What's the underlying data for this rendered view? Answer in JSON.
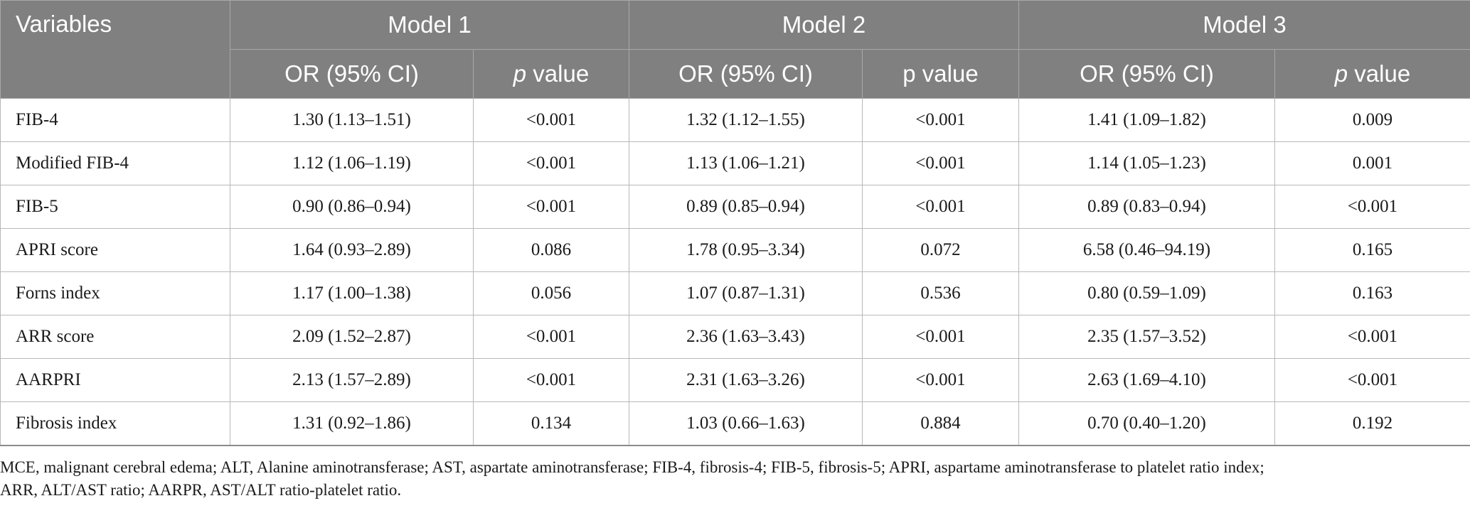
{
  "table": {
    "header": {
      "variables": "Variables",
      "models": [
        "Model 1",
        "Model 2",
        "Model 3"
      ],
      "or_label": "OR (95% CI)",
      "p_letter": "p",
      "p_rest": " value",
      "p_plain": "p value"
    },
    "rows": [
      {
        "variable": "FIB-4",
        "or1": "1.30 (1.13–1.51)",
        "p1": "<0.001",
        "or2": "1.32 (1.12–1.55)",
        "p2": "<0.001",
        "or3": "1.41 (1.09–1.82)",
        "p3": "0.009"
      },
      {
        "variable": "Modified FIB-4",
        "or1": "1.12 (1.06–1.19)",
        "p1": "<0.001",
        "or2": "1.13 (1.06–1.21)",
        "p2": "<0.001",
        "or3": "1.14 (1.05–1.23)",
        "p3": "0.001"
      },
      {
        "variable": "FIB-5",
        "or1": "0.90 (0.86–0.94)",
        "p1": "<0.001",
        "or2": "0.89 (0.85–0.94)",
        "p2": "<0.001",
        "or3": "0.89 (0.83–0.94)",
        "p3": "<0.001"
      },
      {
        "variable": "APRI score",
        "or1": "1.64 (0.93–2.89)",
        "p1": "0.086",
        "or2": "1.78 (0.95–3.34)",
        "p2": "0.072",
        "or3": "6.58 (0.46–94.19)",
        "p3": "0.165"
      },
      {
        "variable": "Forns index",
        "or1": "1.17 (1.00–1.38)",
        "p1": "0.056",
        "or2": "1.07 (0.87–1.31)",
        "p2": "0.536",
        "or3": "0.80 (0.59–1.09)",
        "p3": "0.163"
      },
      {
        "variable": "ARR score",
        "or1": "2.09 (1.52–2.87)",
        "p1": "<0.001",
        "or2": "2.36 (1.63–3.43)",
        "p2": "<0.001",
        "or3": "2.35 (1.57–3.52)",
        "p3": "<0.001"
      },
      {
        "variable": "AARPRI",
        "or1": "2.13 (1.57–2.89)",
        "p1": "<0.001",
        "or2": "2.31 (1.63–3.26)",
        "p2": "<0.001",
        "or3": "2.63 (1.69–4.10)",
        "p3": "<0.001"
      },
      {
        "variable": "Fibrosis index",
        "or1": "1.31 (0.92–1.86)",
        "p1": "0.134",
        "or2": "1.03 (0.66–1.63)",
        "p2": "0.884",
        "or3": "0.70 (0.40–1.20)",
        "p3": "0.192"
      }
    ]
  },
  "footnote": {
    "line1": "MCE, malignant cerebral edema; ALT, Alanine aminotransferase; AST, aspartate aminotransferase; FIB-4, fibrosis-4; FIB-5, fibrosis-5; APRI, aspartame aminotransferase to platelet ratio index;",
    "line2": "ARR, ALT/AST ratio; AARPR, AST/ALT ratio-platelet ratio."
  },
  "colors": {
    "header_bg": "#808080",
    "header_text": "#ffffff",
    "grid": "#b8b8b8"
  }
}
